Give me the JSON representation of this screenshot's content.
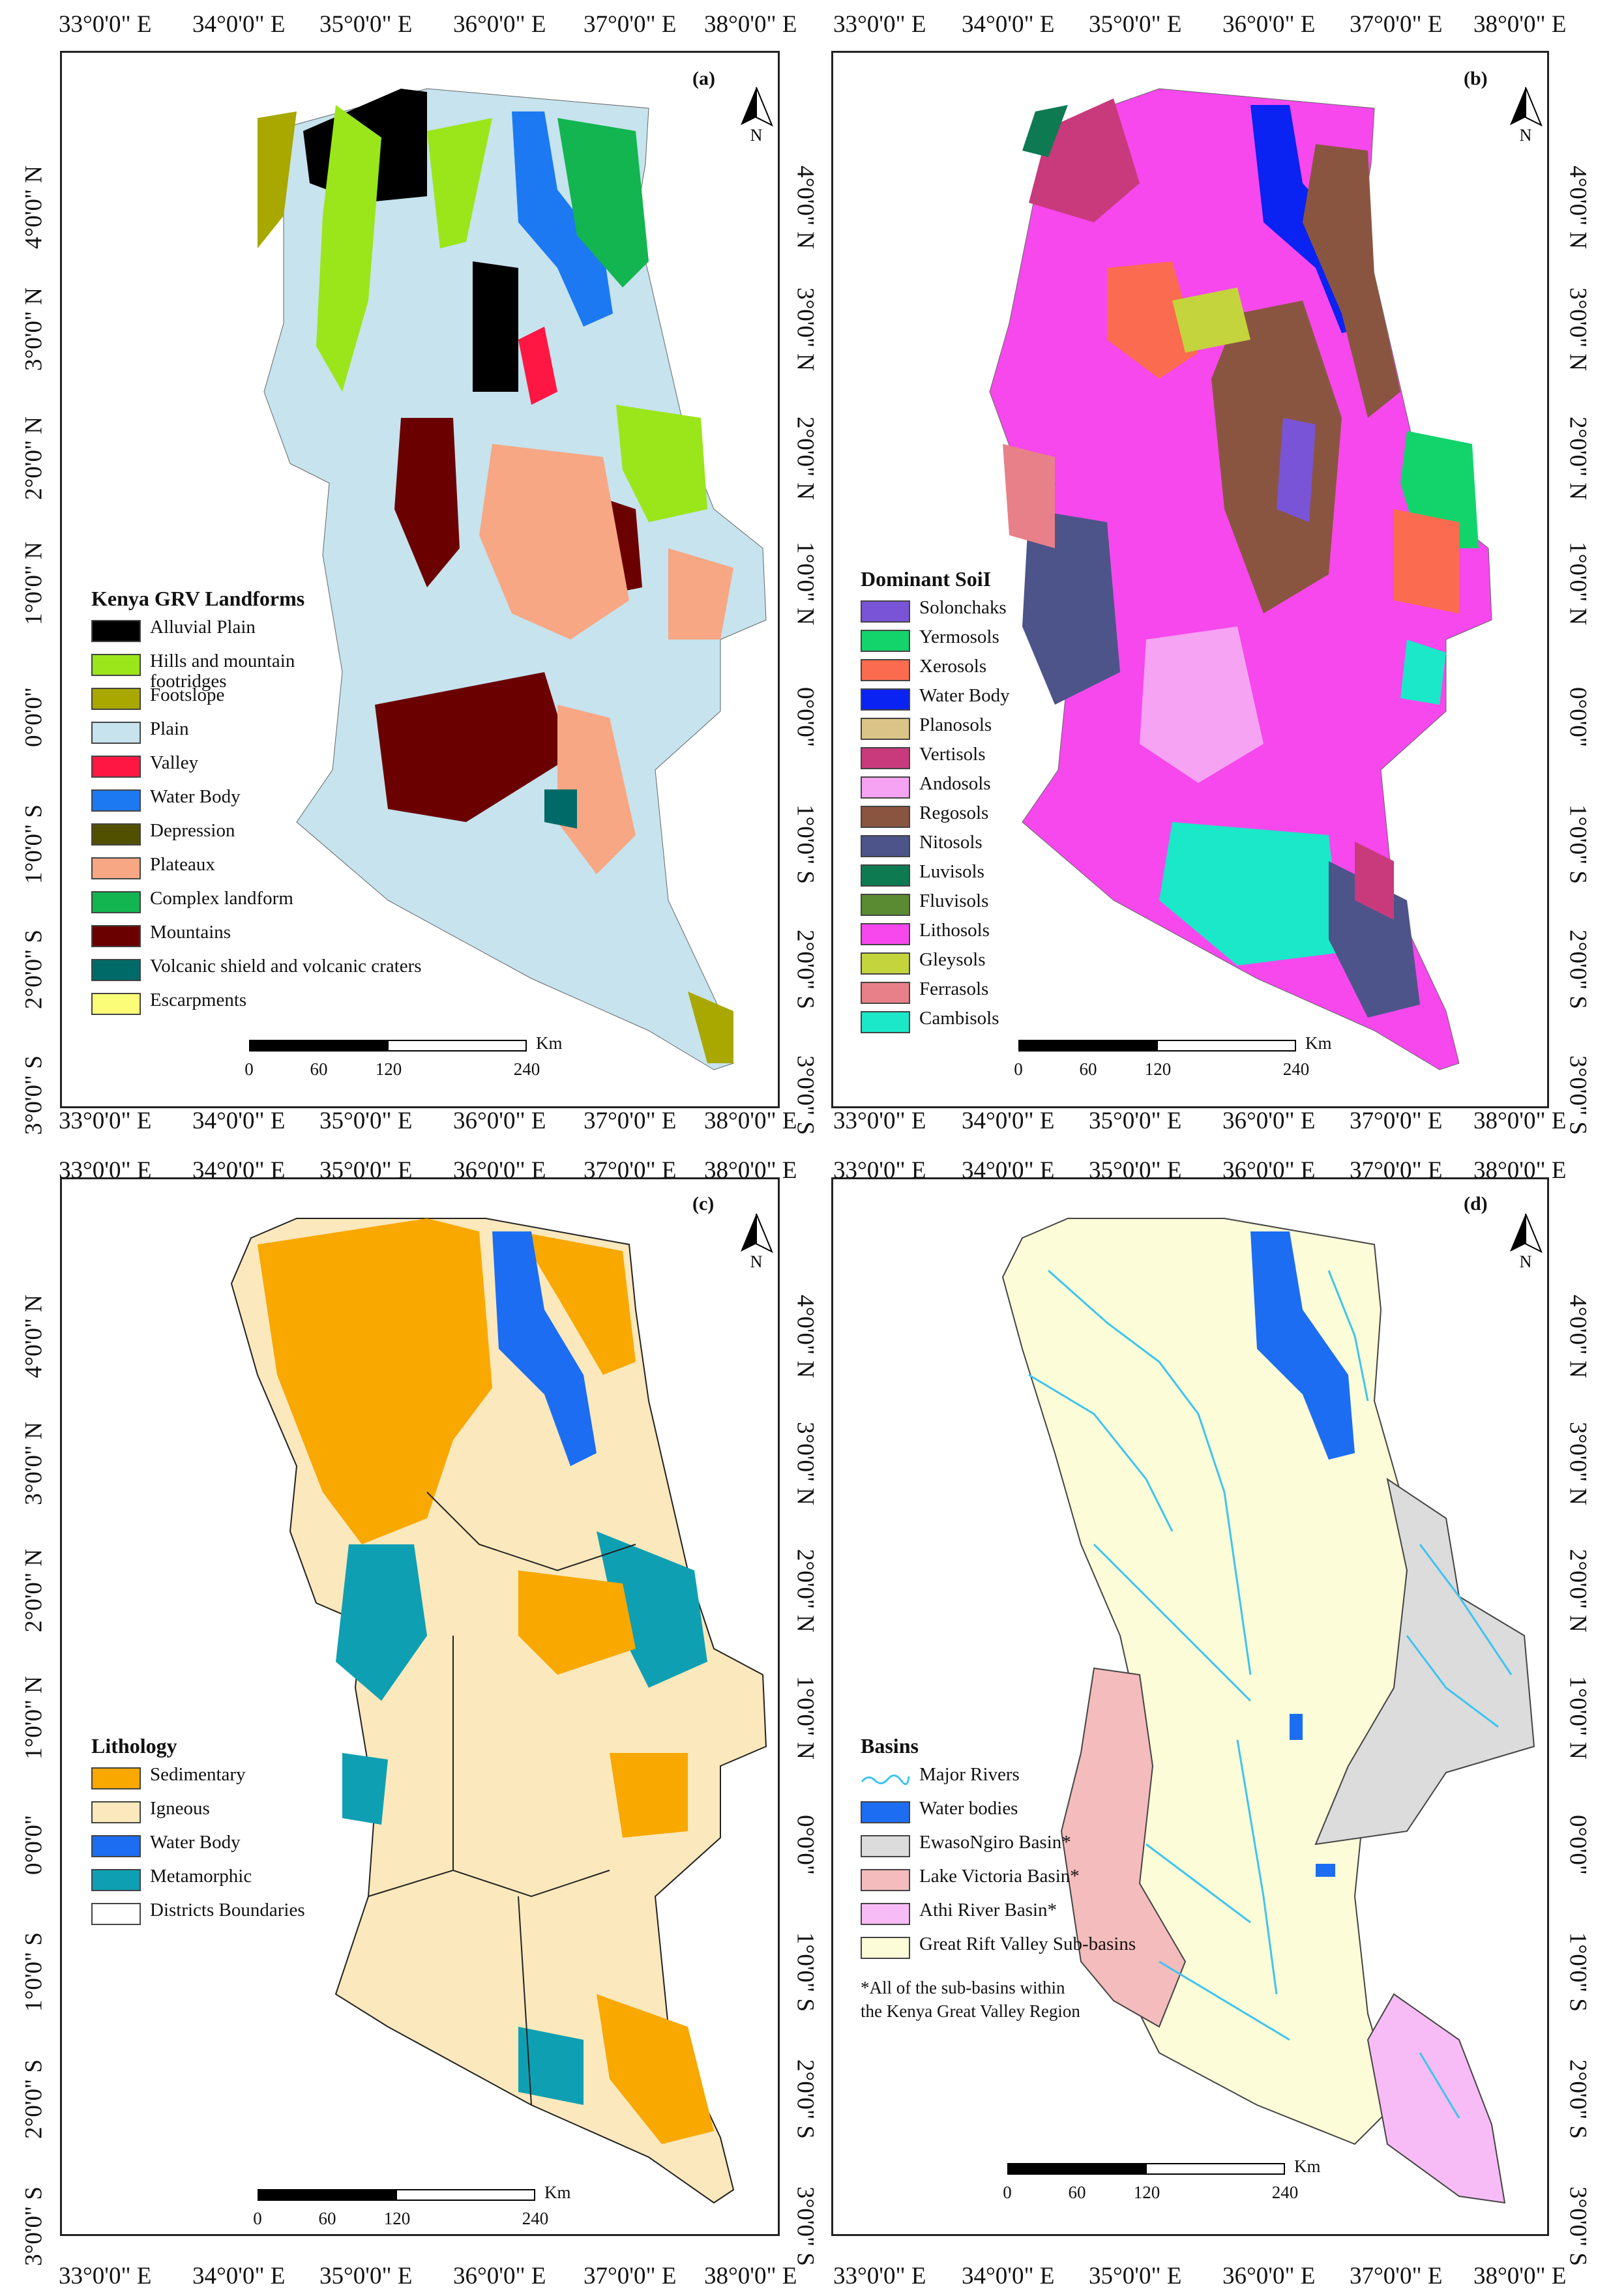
{
  "lon_ticks": [
    "33°0'0\" E",
    "34°0'0\" E",
    "35°0'0\" E",
    "36°0'0\" E",
    "37°0'0\" E",
    "38°0'0\" E"
  ],
  "lat_ticks": [
    "4°0'0\" N",
    "3°0'0\" N",
    "2°0'0\" N",
    "1°0'0\" N",
    "0°0'0\"",
    "1°0'0\" S",
    "2°0'0\" S",
    "3°0'0\" S"
  ],
  "north_label": "N",
  "scale": {
    "unit": "Km",
    "labels": [
      "0",
      "60",
      "120",
      "240"
    ]
  },
  "panels": {
    "a": {
      "label": "(a)",
      "legend_title": "Kenya GRV Landforms",
      "items": [
        {
          "label": "Alluvial Plain",
          "color": "#000000"
        },
        {
          "label": "Hills and mountain footridges",
          "color": "#9ae61a"
        },
        {
          "label": "Footslope",
          "color": "#a8a800"
        },
        {
          "label": "Plain",
          "color": "#c6e3ee"
        },
        {
          "label": "Valley",
          "color": "#ff1744"
        },
        {
          "label": "Water Body",
          "color": "#1c79f2"
        },
        {
          "label": "Depression",
          "color": "#505000"
        },
        {
          "label": "Plateaux",
          "color": "#f7a783"
        },
        {
          "label": "Complex landform",
          "color": "#12b54f"
        },
        {
          "label": "Mountains",
          "color": "#6b0000"
        },
        {
          "label": "Volcanic shield and volcanic craters",
          "color": "#006a68"
        },
        {
          "label": "Escarpments",
          "color": "#fbfc78"
        }
      ]
    },
    "b": {
      "label": "(b)",
      "legend_title": "Dominant SoiI",
      "items": [
        {
          "label": "Solonchaks",
          "color": "#7a54d6"
        },
        {
          "label": "Yermosols",
          "color": "#13d46b"
        },
        {
          "label": "Xerosols",
          "color": "#fa6b4f"
        },
        {
          "label": "Water Body",
          "color": "#0a22f2"
        },
        {
          "label": "Planosols",
          "color": "#dbc487"
        },
        {
          "label": "Vertisols",
          "color": "#c83a7c"
        },
        {
          "label": "Andosols",
          "color": "#f5a3f2"
        },
        {
          "label": "Regosols",
          "color": "#8a5540"
        },
        {
          "label": "Nitosols",
          "color": "#4d548a"
        },
        {
          "label": "Luvisols",
          "color": "#0d7a52"
        },
        {
          "label": "Fluvisols",
          "color": "#5a8a32"
        },
        {
          "label": "Lithosols",
          "color": "#f648ec"
        },
        {
          "label": "Gleysols",
          "color": "#c4d43c"
        },
        {
          "label": "Ferrasols",
          "color": "#e8808a"
        },
        {
          "label": "Cambisols",
          "color": "#1ae8c8"
        }
      ]
    },
    "c": {
      "label": "(c)",
      "legend_title": "Lithology",
      "items": [
        {
          "label": "Sedimentary",
          "color": "#f9a800"
        },
        {
          "label": "Igneous",
          "color": "#fbe8bc"
        },
        {
          "label": "Water Body",
          "color": "#1c6df2"
        },
        {
          "label": "Metamorphic",
          "color": "#0f9fb2"
        },
        {
          "label": "Districts Boundaries",
          "color": "#ffffff"
        }
      ]
    },
    "d": {
      "label": "(d)",
      "legend_title": "Basins",
      "items": [
        {
          "label": "Major Rivers",
          "color": "#3ec4f0"
        },
        {
          "label": "Water bodies",
          "color": "#1c6df2"
        },
        {
          "label": "EwasoNgiro Basin*",
          "color": "#dcdcdc"
        },
        {
          "label": "Lake Victoria Basin*",
          "color": "#f4bcbc"
        },
        {
          "label": "Athi River Basin*",
          "color": "#f7bcf5"
        },
        {
          "label": "Great Rift Valley Sub-basins",
          "color": "#fdfcd8"
        }
      ],
      "note": [
        "*All of the sub-basins within",
        "the Kenya Great Valley Region"
      ]
    }
  }
}
